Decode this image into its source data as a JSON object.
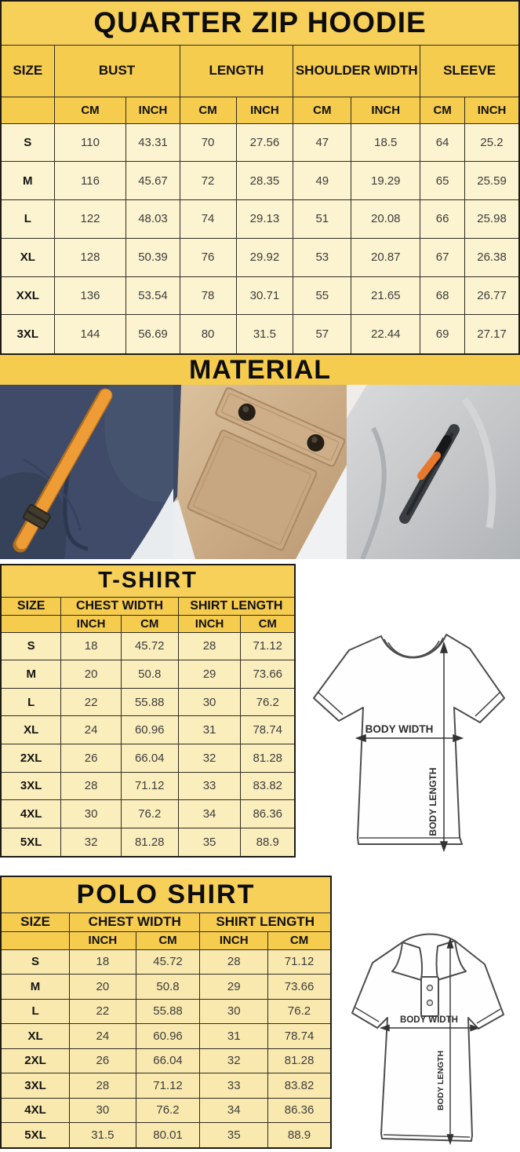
{
  "hoodie_table": {
    "title": "QUARTER ZIP HOODIE",
    "groups": [
      {
        "label": "SIZE",
        "span": 1
      },
      {
        "label": "BUST",
        "span": 2
      },
      {
        "label": "LENGTH",
        "span": 2
      },
      {
        "label": "SHOULDER WIDTH",
        "span": 2
      },
      {
        "label": "SLEEVE",
        "span": 2
      }
    ],
    "unit_headers": [
      "CM",
      "INCH",
      "CM",
      "INCH",
      "CM",
      "INCH",
      "CM",
      "INCH"
    ],
    "rows": [
      {
        "size": "S",
        "cells": [
          "110",
          "43.31",
          "70",
          "27.56",
          "47",
          "18.5",
          "64",
          "25.2"
        ]
      },
      {
        "size": "M",
        "cells": [
          "116",
          "45.67",
          "72",
          "28.35",
          "49",
          "19.29",
          "65",
          "25.59"
        ]
      },
      {
        "size": "L",
        "cells": [
          "122",
          "48.03",
          "74",
          "29.13",
          "51",
          "20.08",
          "66",
          "25.98"
        ]
      },
      {
        "size": "XL",
        "cells": [
          "128",
          "50.39",
          "76",
          "29.92",
          "53",
          "20.87",
          "67",
          "26.38"
        ]
      },
      {
        "size": "XXL",
        "cells": [
          "136",
          "53.54",
          "78",
          "30.71",
          "55",
          "21.65",
          "68",
          "26.77"
        ]
      },
      {
        "size": "3XL",
        "cells": [
          "144",
          "56.69",
          "80",
          "31.5",
          "57",
          "22.44",
          "69",
          "27.17"
        ]
      }
    ]
  },
  "material": {
    "title": "MATERIAL",
    "photos": [
      {
        "name": "navy-fleece-with-orange-drawcord"
      },
      {
        "name": "khaki-snap-flap-pocket"
      },
      {
        "name": "gray-fleece-zip-pocket"
      }
    ]
  },
  "tshirt_table": {
    "title": "T-SHIRT",
    "groups": [
      {
        "label": "SIZE",
        "span": 1
      },
      {
        "label": "CHEST WIDTH",
        "span": 2
      },
      {
        "label": "SHIRT LENGTH",
        "span": 2
      }
    ],
    "unit_headers": [
      "INCH",
      "CM",
      "INCH",
      "CM"
    ],
    "rows": [
      {
        "size": "S",
        "cells": [
          "18",
          "45.72",
          "28",
          "71.12"
        ]
      },
      {
        "size": "M",
        "cells": [
          "20",
          "50.8",
          "29",
          "73.66"
        ]
      },
      {
        "size": "L",
        "cells": [
          "22",
          "55.88",
          "30",
          "76.2"
        ]
      },
      {
        "size": "XL",
        "cells": [
          "24",
          "60.96",
          "31",
          "78.74"
        ]
      },
      {
        "size": "2XL",
        "cells": [
          "26",
          "66.04",
          "32",
          "81.28"
        ]
      },
      {
        "size": "3XL",
        "cells": [
          "28",
          "71.12",
          "33",
          "83.82"
        ]
      },
      {
        "size": "4XL",
        "cells": [
          "30",
          "76.2",
          "34",
          "86.36"
        ]
      },
      {
        "size": "5XL",
        "cells": [
          "32",
          "81.28",
          "35",
          "88.9"
        ]
      }
    ]
  },
  "polo_table": {
    "title": "POLO SHIRT",
    "groups": [
      {
        "label": "SIZE",
        "span": 1
      },
      {
        "label": "CHEST WIDTH",
        "span": 2
      },
      {
        "label": "SHIRT LENGTH",
        "span": 2
      }
    ],
    "unit_headers": [
      "INCH",
      "CM",
      "INCH",
      "CM"
    ],
    "rows": [
      {
        "size": "S",
        "cells": [
          "18",
          "45.72",
          "28",
          "71.12"
        ]
      },
      {
        "size": "M",
        "cells": [
          "20",
          "50.8",
          "29",
          "73.66"
        ]
      },
      {
        "size": "L",
        "cells": [
          "22",
          "55.88",
          "30",
          "76.2"
        ]
      },
      {
        "size": "XL",
        "cells": [
          "24",
          "60.96",
          "31",
          "78.74"
        ]
      },
      {
        "size": "2XL",
        "cells": [
          "26",
          "66.04",
          "32",
          "81.28"
        ]
      },
      {
        "size": "3XL",
        "cells": [
          "28",
          "71.12",
          "33",
          "83.82"
        ]
      },
      {
        "size": "4XL",
        "cells": [
          "30",
          "76.2",
          "34",
          "86.36"
        ]
      },
      {
        "size": "5XL",
        "cells": [
          "31.5",
          "80.01",
          "35",
          "88.9"
        ]
      }
    ]
  },
  "diagrams": {
    "tshirt": {
      "body_width_label": "BODY WIDTH",
      "body_length_label": "BODY LENGTH"
    },
    "polo": {
      "body_width_label": "BODY WIDTH",
      "body_length_label": "BODY LENGTH"
    }
  },
  "colors": {
    "header_yellow": "#f6cc4e",
    "title_yellow": "#f7d05a",
    "hoodie_row_cream": "#fcf3d0",
    "tshirt_row_cream": "#fbeebd",
    "polo_row_cream": "#f9e9ae",
    "grid_line": "#2f2c24",
    "navy_fabric": "#3f4b68",
    "orange_accent": "#ee9c35",
    "khaki_fabric": "#c9aa84",
    "gray_fabric": "#c4c6c8"
  }
}
